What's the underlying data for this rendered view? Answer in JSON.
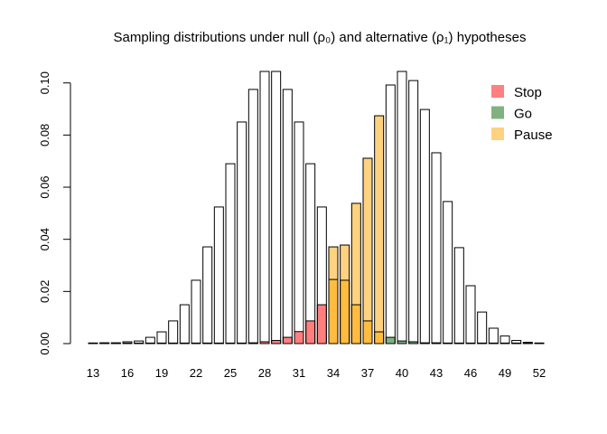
{
  "chart_data": {
    "type": "bar",
    "title": "Sampling distributions under null (ρ₀) and alternative (ρ₁) hypotheses",
    "xlabel": "",
    "ylabel": "",
    "ylim": [
      0,
      0.105
    ],
    "yticks": [
      "0.00",
      "0.02",
      "0.04",
      "0.06",
      "0.08",
      "0.10"
    ],
    "xticks": [
      "13",
      "16",
      "19",
      "22",
      "25",
      "28",
      "31",
      "34",
      "37",
      "40",
      "43",
      "46",
      "49",
      "52"
    ],
    "x": [
      13,
      14,
      15,
      16,
      17,
      18,
      19,
      20,
      21,
      22,
      23,
      24,
      25,
      26,
      27,
      28,
      29,
      30,
      31,
      32,
      33,
      34,
      35,
      36,
      37,
      38,
      39,
      40,
      41,
      42,
      43,
      44,
      45,
      46,
      47,
      48,
      49,
      50,
      51,
      52
    ],
    "series": [
      {
        "key": "null",
        "values": [
          0.0,
          0.0003,
          0.0003,
          0.0007,
          0.001,
          0.0024,
          0.0045,
          0.0087,
          0.0149,
          0.0243,
          0.0371,
          0.0524,
          0.069,
          0.085,
          0.0975,
          0.1044,
          0.1044,
          0.0975,
          0.085,
          0.069,
          0.0524,
          0.0371,
          0.0243,
          0.0149,
          0.0087,
          0.0045,
          0.0024,
          0.001,
          0.0007,
          0.0003,
          0.0003,
          0.0001,
          0.0,
          0.0,
          0.0,
          0.0,
          0.0,
          0.0,
          0.0,
          0.0
        ]
      },
      {
        "key": "alternative",
        "values": [
          0.0,
          0.0,
          0.0,
          0.0,
          0.0,
          0.0,
          0.0,
          0.0,
          0.0,
          0.0,
          0.0,
          0.0,
          0.0001,
          0.0001,
          0.0003,
          0.0007,
          0.0012,
          0.0024,
          0.0046,
          0.0087,
          0.0149,
          0.0246,
          0.0378,
          0.0538,
          0.0711,
          0.0874,
          0.0992,
          0.1044,
          0.1009,
          0.0898,
          0.0732,
          0.0545,
          0.0368,
          0.0222,
          0.0121,
          0.0059,
          0.0029,
          0.0012,
          0.0005,
          0.0002
        ]
      }
    ],
    "regions": {
      "stop_max": 33,
      "pause_min": 34,
      "pause_max": 38,
      "go_min": 39
    },
    "legend": {
      "position": "top-right",
      "items": [
        {
          "label": "Stop",
          "color": "#FF8080"
        },
        {
          "label": "Go",
          "color": "#80B280"
        },
        {
          "label": "Pause",
          "color": "#FFD280"
        }
      ]
    },
    "colors": {
      "stop": "rgba(255,0,0,0.5)",
      "go": "rgba(0,100,0,0.5)",
      "pause": "rgba(255,165,0,0.5)"
    },
    "grid": false
  }
}
